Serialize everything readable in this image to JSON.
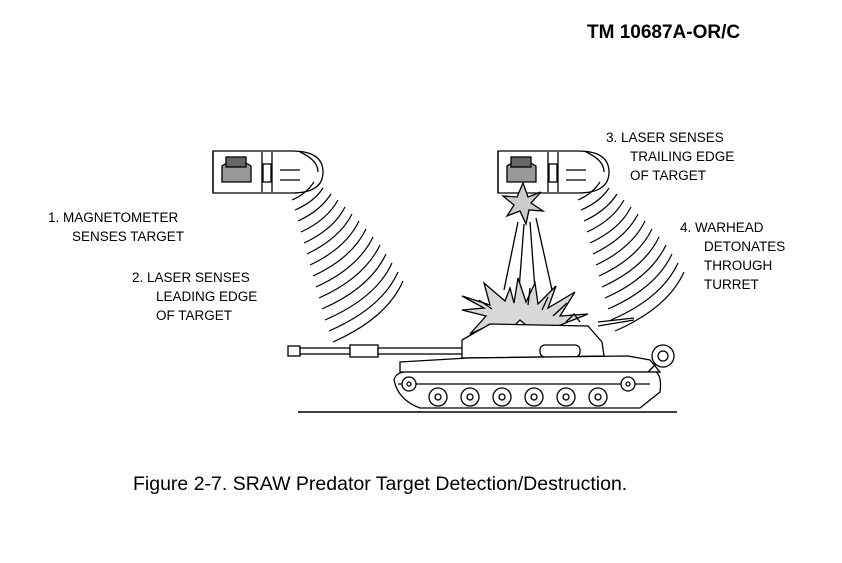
{
  "document": {
    "id": "TM 10687A-OR/C"
  },
  "figure": {
    "caption": "Figure 2-7.  SRAW Predator Target Detection/Destruction."
  },
  "labels": {
    "step1": {
      "line1": "1.  MAGNETOMETER",
      "line2": "SENSES TARGET"
    },
    "step2": {
      "line1": "2.  LASER SENSES",
      "line2": "LEADING EDGE",
      "line3": "OF TARGET"
    },
    "step3": {
      "line1": "3.  LASER SENSES",
      "line2": "TRAILING EDGE",
      "line3": "OF TARGET"
    },
    "step4": {
      "line1": "4.  WARHEAD",
      "line2": "DETONATES",
      "line3": "THROUGH",
      "line4": "TURRET"
    }
  }
}
